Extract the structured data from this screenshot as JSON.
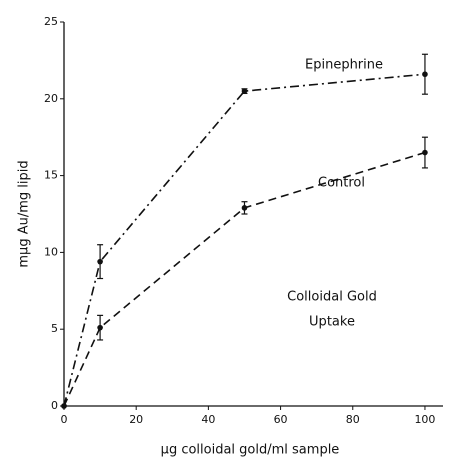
{
  "chart_data": {
    "type": "line",
    "xlabel": "μg colloidal gold/ml sample",
    "ylabel": "mμg Au/mg lipid",
    "annotation": [
      "Colloidal Gold",
      "Uptake"
    ],
    "x": [
      0,
      10,
      50,
      100
    ],
    "series": [
      {
        "name": "Epinephrine",
        "color": "#111111",
        "dash": "dashdot",
        "values": [
          0,
          9.4,
          20.5,
          21.6
        ],
        "errors": [
          null,
          1.1,
          0.15,
          1.3
        ]
      },
      {
        "name": "Control",
        "color": "#111111",
        "dash": "dashed",
        "values": [
          0,
          5.1,
          12.9,
          16.5
        ],
        "errors": [
          null,
          0.8,
          0.4,
          1.0
        ]
      }
    ],
    "xlim": [
      0,
      105
    ],
    "xticks": [
      0,
      20,
      40,
      60,
      80,
      100
    ],
    "ylim": [
      0,
      25
    ],
    "yticks": [
      0,
      5,
      10,
      15,
      20,
      25
    ],
    "grid": false
  }
}
